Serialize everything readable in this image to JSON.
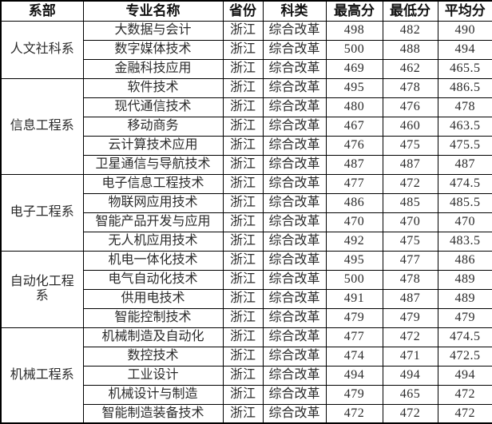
{
  "colors": {
    "background": "#ffffff",
    "border": "#000000",
    "header_text": "#111111",
    "body_text": "#2b2b2b"
  },
  "table": {
    "headers": [
      "系部",
      "专业名称",
      "省份",
      "科类",
      "最高分",
      "最低分",
      "平均分"
    ],
    "groups": [
      {
        "department": "人文社科系",
        "rows": [
          {
            "major": "大数据与会计",
            "province": "浙江",
            "category": "综合改革",
            "max": "498",
            "min": "482",
            "avg": "490"
          },
          {
            "major": "数字媒体技术",
            "province": "浙江",
            "category": "综合改革",
            "max": "500",
            "min": "488",
            "avg": "494"
          },
          {
            "major": "金融科技应用",
            "province": "浙江",
            "category": "综合改革",
            "max": "469",
            "min": "462",
            "avg": "465.5"
          }
        ]
      },
      {
        "department": "信息工程系",
        "rows": [
          {
            "major": "软件技术",
            "province": "浙江",
            "category": "综合改革",
            "max": "495",
            "min": "478",
            "avg": "486.5"
          },
          {
            "major": "现代通信技术",
            "province": "浙江",
            "category": "综合改革",
            "max": "480",
            "min": "476",
            "avg": "478"
          },
          {
            "major": "移动商务",
            "province": "浙江",
            "category": "综合改革",
            "max": "467",
            "min": "460",
            "avg": "463.5"
          },
          {
            "major": "云计算技术应用",
            "province": "浙江",
            "category": "综合改革",
            "max": "476",
            "min": "475",
            "avg": "475.5"
          },
          {
            "major": "卫星通信与导航技术",
            "province": "浙江",
            "category": "综合改革",
            "max": "487",
            "min": "487",
            "avg": "487"
          }
        ]
      },
      {
        "department": "电子工程系",
        "rows": [
          {
            "major": "电子信息工程技术",
            "province": "浙江",
            "category": "综合改革",
            "max": "477",
            "min": "472",
            "avg": "474.5"
          },
          {
            "major": "物联网应用技术",
            "province": "浙江",
            "category": "综合改革",
            "max": "486",
            "min": "485",
            "avg": "485.5"
          },
          {
            "major": "智能产品开发与应用",
            "province": "浙江",
            "category": "综合改革",
            "max": "470",
            "min": "470",
            "avg": "470"
          },
          {
            "major": "无人机应用技术",
            "province": "浙江",
            "category": "综合改革",
            "max": "492",
            "min": "475",
            "avg": "483.5"
          }
        ]
      },
      {
        "department": "自动化工程系",
        "rows": [
          {
            "major": "机电一体化技术",
            "province": "浙江",
            "category": "综合改革",
            "max": "495",
            "min": "477",
            "avg": "486"
          },
          {
            "major": "电气自动化技术",
            "province": "浙江",
            "category": "综合改革",
            "max": "500",
            "min": "478",
            "avg": "489"
          },
          {
            "major": "供用电技术",
            "province": "浙江",
            "category": "综合改革",
            "max": "491",
            "min": "487",
            "avg": "489"
          },
          {
            "major": "智能控制技术",
            "province": "浙江",
            "category": "综合改革",
            "max": "479",
            "min": "479",
            "avg": "479"
          }
        ]
      },
      {
        "department": "机械工程系",
        "rows": [
          {
            "major": "机械制造及自动化",
            "province": "浙江",
            "category": "综合改革",
            "max": "477",
            "min": "472",
            "avg": "474.5"
          },
          {
            "major": "数控技术",
            "province": "浙江",
            "category": "综合改革",
            "max": "474",
            "min": "471",
            "avg": "472.5"
          },
          {
            "major": "工业设计",
            "province": "浙江",
            "category": "综合改革",
            "max": "494",
            "min": "494",
            "avg": "494"
          },
          {
            "major": "机械设计与制造",
            "province": "浙江",
            "category": "综合改革",
            "max": "479",
            "min": "465",
            "avg": "472"
          },
          {
            "major": "智能制造装备技术",
            "province": "浙江",
            "category": "综合改革",
            "max": "472",
            "min": "472",
            "avg": "472"
          }
        ]
      }
    ]
  }
}
